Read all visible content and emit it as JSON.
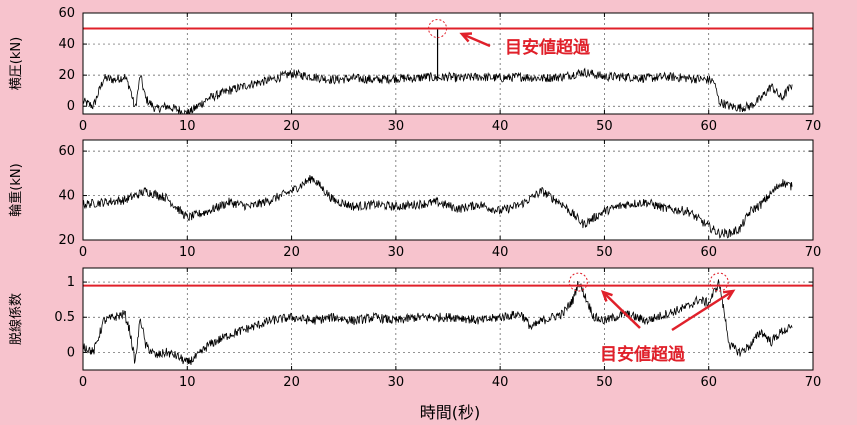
{
  "figure": {
    "xlabel": "時間(秒)",
    "annotation_label": "目安値超過",
    "colors": {
      "background": "#f7c3cd",
      "trace": "#000000",
      "limit": "#e0202a",
      "annotation": "#e0202a"
    }
  },
  "chart_data": [
    {
      "type": "line",
      "ylabel": "横圧(kN)",
      "xlim": [
        0,
        70
      ],
      "ylim": [
        -5,
        60
      ],
      "xticks": [
        0,
        10,
        20,
        30,
        40,
        50,
        60,
        70
      ],
      "yticks": [
        0,
        20,
        40,
        60
      ],
      "grid": true,
      "threshold": 50,
      "x": [
        0,
        1,
        2,
        3,
        4,
        4.5,
        5,
        5.5,
        6,
        7,
        8,
        9,
        10,
        11,
        12,
        14,
        16,
        18,
        20,
        22,
        24,
        26,
        28,
        30,
        32,
        33,
        34,
        35,
        36,
        38,
        40,
        42,
        44,
        46,
        48,
        50,
        52,
        54,
        56,
        58,
        60,
        60.5,
        61,
        62,
        63,
        64,
        65,
        66,
        67,
        68
      ],
      "y": [
        3,
        0,
        18,
        17,
        19,
        12,
        -2,
        20,
        5,
        -2,
        0,
        -2,
        -5,
        0,
        5,
        10,
        14,
        17,
        21,
        19,
        17,
        18,
        17,
        18,
        18,
        19,
        18,
        19,
        18,
        19,
        18,
        19,
        18,
        19,
        22,
        19,
        19,
        18,
        19,
        18,
        17,
        16,
        3,
        0,
        -1,
        0,
        5,
        13,
        5,
        14
      ],
      "annotations": [
        {
          "text": "目安値超過",
          "x": 34,
          "y": 50
        }
      ]
    },
    {
      "type": "line",
      "ylabel": "輪重(kN)",
      "xlim": [
        0,
        70
      ],
      "ylim": [
        20,
        65
      ],
      "xticks": [
        0,
        10,
        20,
        30,
        40,
        50,
        60,
        70
      ],
      "yticks": [
        20,
        40,
        60
      ],
      "grid": true,
      "x": [
        0,
        2,
        4,
        6,
        8,
        10,
        12,
        14,
        16,
        18,
        20,
        22,
        24,
        26,
        28,
        30,
        32,
        34,
        36,
        38,
        40,
        42,
        44,
        46,
        48,
        50,
        52,
        54,
        56,
        58,
        60,
        61,
        62,
        63,
        64,
        65,
        66,
        67,
        68
      ],
      "y": [
        36,
        37,
        38,
        42,
        39,
        30,
        33,
        37,
        35,
        38,
        42,
        48,
        38,
        35,
        36,
        35,
        36,
        37,
        34,
        36,
        33,
        36,
        42,
        36,
        27,
        33,
        36,
        37,
        34,
        33,
        26,
        23,
        23,
        25,
        33,
        36,
        41,
        46,
        44
      ]
    },
    {
      "type": "line",
      "ylabel": "脱線係数",
      "xlim": [
        0,
        70
      ],
      "ylim": [
        -0.25,
        1.2
      ],
      "xticks": [
        0,
        10,
        20,
        30,
        40,
        50,
        60,
        70
      ],
      "yticks": [
        0,
        0.5,
        1
      ],
      "grid": true,
      "threshold": 0.95,
      "x": [
        0,
        1,
        2,
        3,
        4,
        4.5,
        5,
        5.5,
        6,
        7,
        8,
        9,
        10,
        11,
        12,
        14,
        16,
        18,
        20,
        22,
        24,
        26,
        28,
        30,
        32,
        34,
        36,
        38,
        40,
        42,
        43,
        44,
        46,
        47,
        47.5,
        48,
        49,
        50,
        52,
        54,
        56,
        58,
        59,
        60,
        60.5,
        61,
        62,
        63,
        64,
        65,
        66,
        67,
        68
      ],
      "y": [
        0.1,
        0,
        0.45,
        0.5,
        0.55,
        0.3,
        -0.15,
        0.5,
        0.1,
        -0.05,
        0,
        -0.05,
        -0.15,
        -0.05,
        0.1,
        0.25,
        0.35,
        0.45,
        0.5,
        0.45,
        0.5,
        0.45,
        0.5,
        0.45,
        0.5,
        0.5,
        0.5,
        0.45,
        0.5,
        0.55,
        0.35,
        0.45,
        0.55,
        0.75,
        1.0,
        0.85,
        0.5,
        0.45,
        0.55,
        0.45,
        0.55,
        0.65,
        0.75,
        0.7,
        0.85,
        1.0,
        0.1,
        0,
        0.1,
        0.3,
        0.15,
        0.3,
        0.35
      ],
      "annotations": [
        {
          "text": "目安値超過",
          "x": 47.5,
          "y": 1.0
        },
        {
          "text": "目安値超過",
          "x": 61,
          "y": 1.0
        }
      ]
    }
  ]
}
